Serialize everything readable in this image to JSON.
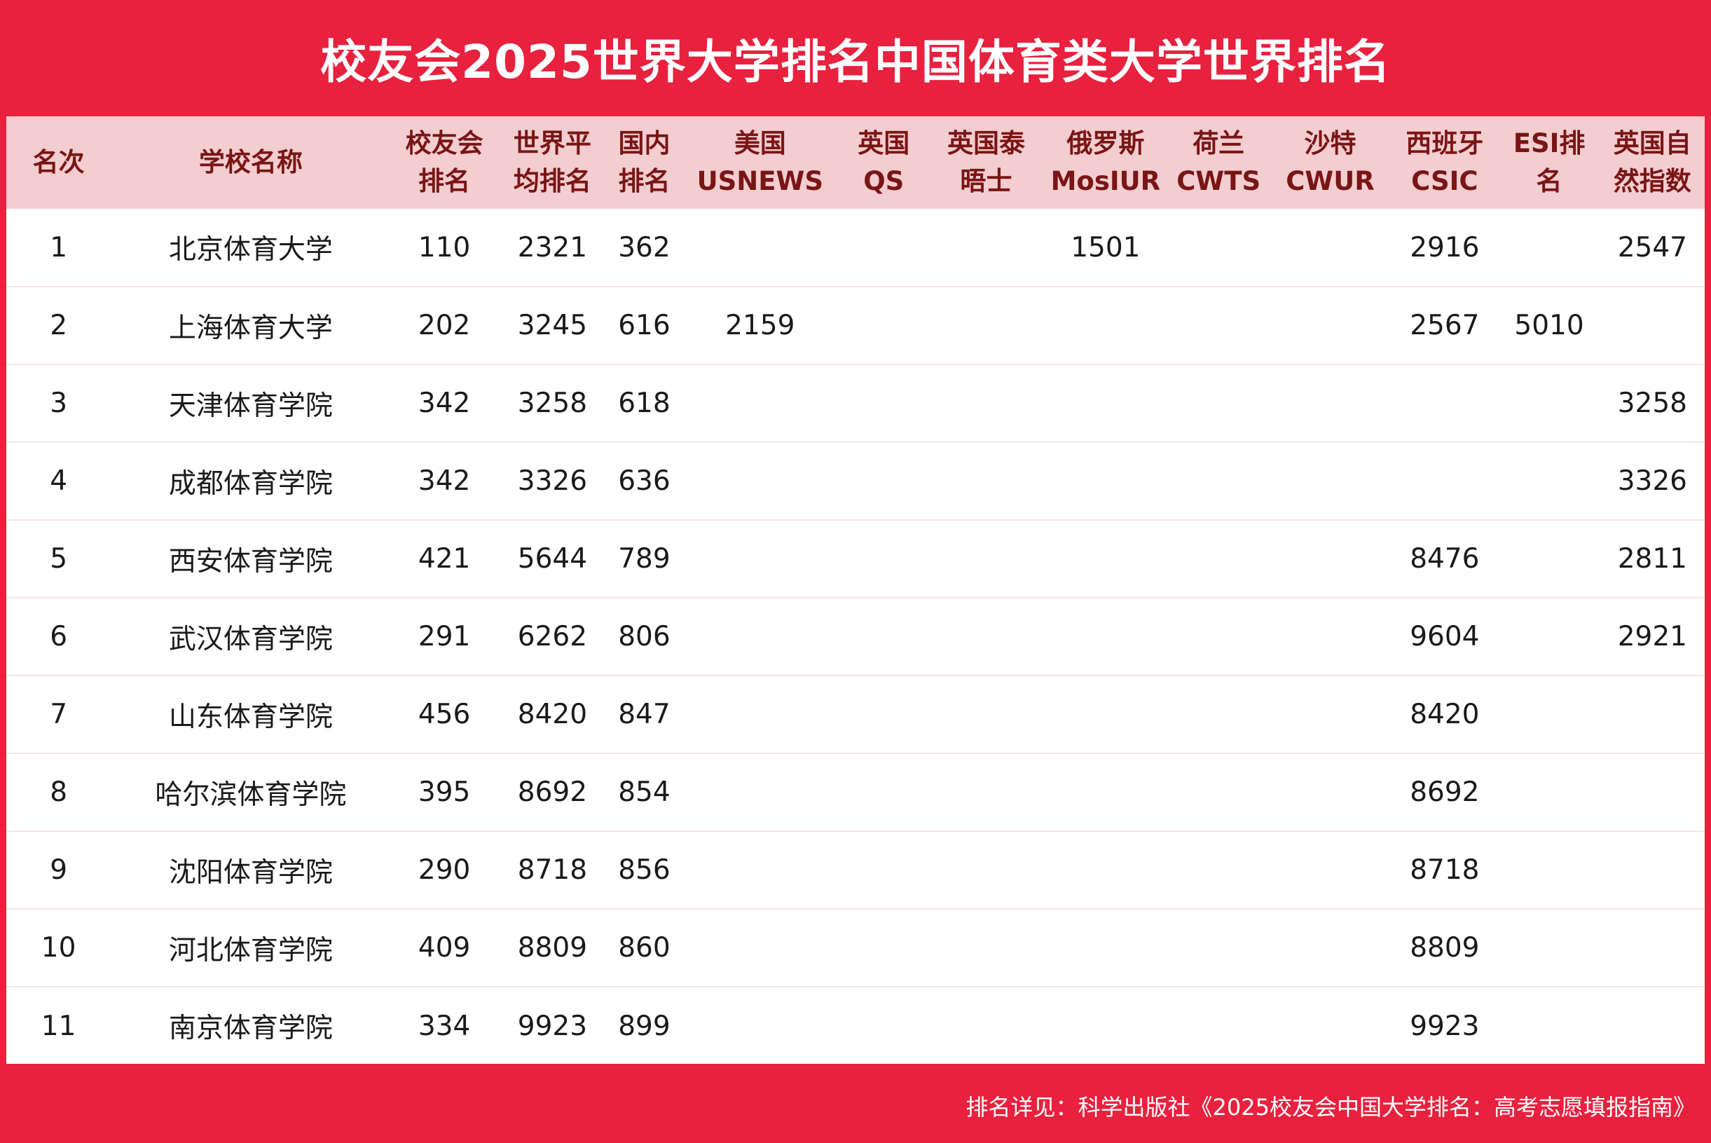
{
  "title": "校友会2025世界大学排名中国体育类大学世界排名",
  "table": {
    "headers": [
      "名次",
      "学校名称",
      "校友会\n排名",
      "世界平\n均排名",
      "国内\n排名",
      "美国\nUSNEWS",
      "英国\nQS",
      "英国泰\n晤士",
      "俄罗斯\nMosIUR",
      "荷兰\nCWTS",
      "沙特\nCWUR",
      "西班牙\nCSIC",
      "ESI排\n名",
      "英国自\n然指数"
    ],
    "rows": [
      [
        "1",
        "北京体育大学",
        "110",
        "2321",
        "362",
        "",
        "",
        "",
        "1501",
        "",
        "",
        "2916",
        "",
        "2547"
      ],
      [
        "2",
        "上海体育大学",
        "202",
        "3245",
        "616",
        "2159",
        "",
        "",
        "",
        "",
        "",
        "2567",
        "5010",
        ""
      ],
      [
        "3",
        "天津体育学院",
        "342",
        "3258",
        "618",
        "",
        "",
        "",
        "",
        "",
        "",
        "",
        "",
        "3258"
      ],
      [
        "4",
        "成都体育学院",
        "342",
        "3326",
        "636",
        "",
        "",
        "",
        "",
        "",
        "",
        "",
        "",
        "3326"
      ],
      [
        "5",
        "西安体育学院",
        "421",
        "5644",
        "789",
        "",
        "",
        "",
        "",
        "",
        "",
        "8476",
        "",
        "2811"
      ],
      [
        "6",
        "武汉体育学院",
        "291",
        "6262",
        "806",
        "",
        "",
        "",
        "",
        "",
        "",
        "9604",
        "",
        "2921"
      ],
      [
        "7",
        "山东体育学院",
        "456",
        "8420",
        "847",
        "",
        "",
        "",
        "",
        "",
        "",
        "8420",
        "",
        ""
      ],
      [
        "8",
        "哈尔滨体育学院",
        "395",
        "8692",
        "854",
        "",
        "",
        "",
        "",
        "",
        "",
        "8692",
        "",
        ""
      ],
      [
        "9",
        "沈阳体育学院",
        "290",
        "8718",
        "856",
        "",
        "",
        "",
        "",
        "",
        "",
        "8718",
        "",
        ""
      ],
      [
        "10",
        "河北体育学院",
        "409",
        "8809",
        "860",
        "",
        "",
        "",
        "",
        "",
        "",
        "8809",
        "",
        ""
      ],
      [
        "11",
        "南京体育学院",
        "334",
        "9923",
        "899",
        "",
        "",
        "",
        "",
        "",
        "",
        "9923",
        "",
        ""
      ]
    ]
  },
  "footer": "排名详见：科学出版社《2025校友会中国大学排名：高考志愿填报指南》",
  "colors": {
    "background": "#e8213e",
    "header_bg": "#f3cdd0",
    "header_text": "#7a1515",
    "body_text": "#1a1a1a"
  }
}
